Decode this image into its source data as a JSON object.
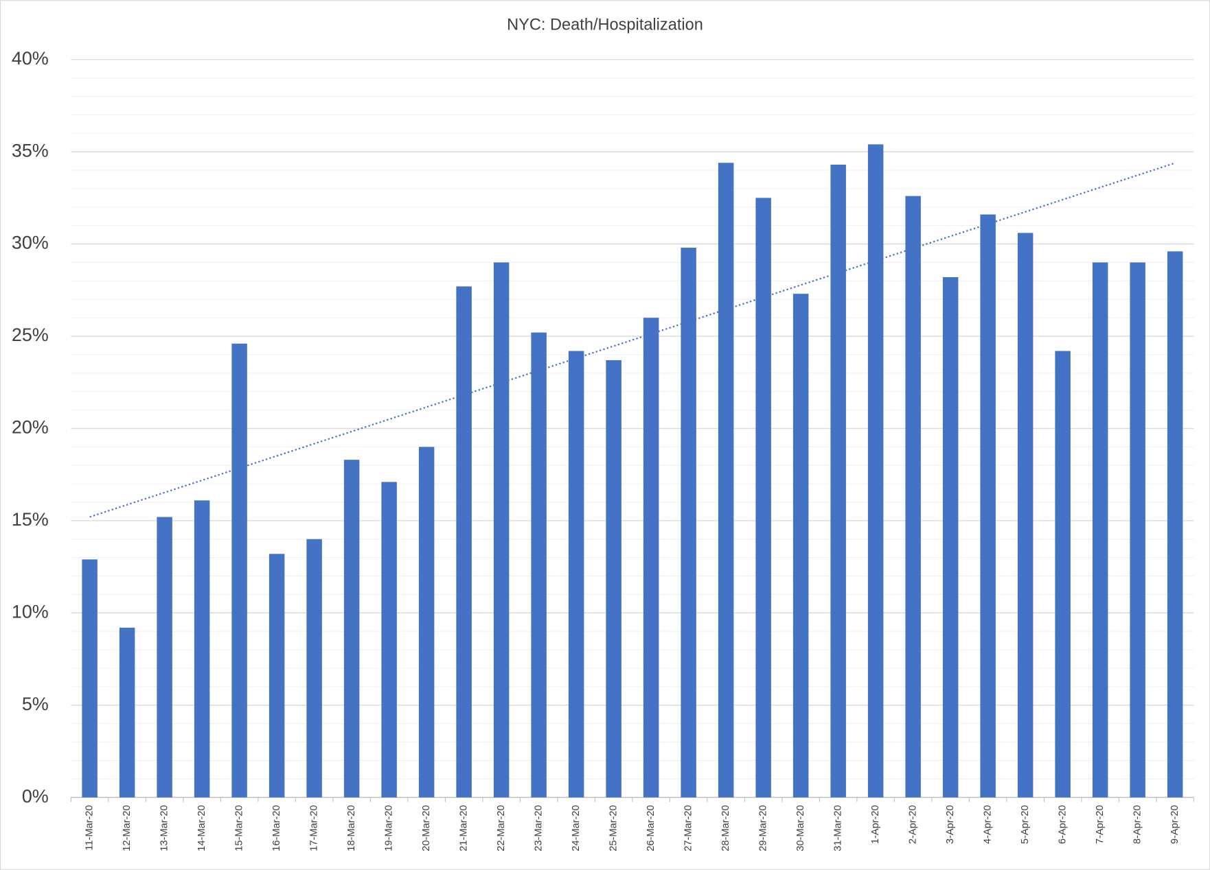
{
  "chart_data": {
    "type": "bar",
    "title": "NYC: Death/Hospitalization",
    "categories": [
      "11-Mar-20",
      "12-Mar-20",
      "13-Mar-20",
      "14-Mar-20",
      "15-Mar-20",
      "16-Mar-20",
      "17-Mar-20",
      "18-Mar-20",
      "19-Mar-20",
      "20-Mar-20",
      "21-Mar-20",
      "22-Mar-20",
      "23-Mar-20",
      "24-Mar-20",
      "25-Mar-20",
      "26-Mar-20",
      "27-Mar-20",
      "28-Mar-20",
      "29-Mar-20",
      "30-Mar-20",
      "31-Mar-20",
      "1-Apr-20",
      "2-Apr-20",
      "3-Apr-20",
      "4-Apr-20",
      "5-Apr-20",
      "6-Apr-20",
      "7-Apr-20",
      "8-Apr-20",
      "9-Apr-20"
    ],
    "values": [
      12.9,
      9.2,
      15.2,
      16.1,
      24.6,
      13.2,
      14.0,
      18.3,
      17.1,
      19.0,
      27.7,
      29.0,
      25.2,
      24.2,
      23.7,
      26.0,
      29.8,
      34.4,
      32.5,
      27.3,
      34.3,
      35.4,
      32.6,
      28.2,
      31.6,
      30.6,
      24.2,
      29.0,
      29.0,
      29.6
    ],
    "color": "#4472c4",
    "ylim": [
      0,
      40
    ],
    "yticks": [
      {
        "value": 0,
        "label": "0%"
      },
      {
        "value": 5,
        "label": "5%"
      },
      {
        "value": 10,
        "label": "10%"
      },
      {
        "value": 15,
        "label": "15%"
      },
      {
        "value": 20,
        "label": "20%"
      },
      {
        "value": 25,
        "label": "25%"
      },
      {
        "value": 30,
        "label": "30%"
      },
      {
        "value": 35,
        "label": "35%"
      },
      {
        "value": 40,
        "label": "40%"
      }
    ],
    "grid": true,
    "minor_grid": 1,
    "trendline": "linear"
  }
}
